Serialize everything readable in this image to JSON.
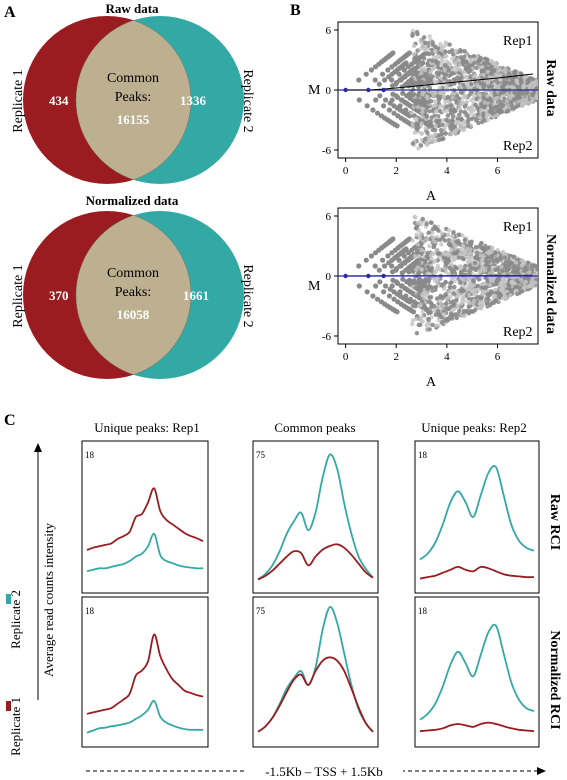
{
  "colors": {
    "red": "#9b1c20",
    "teal": "#33a9a5",
    "overlap": "#bdb090",
    "ma_point": "#8a8a8a",
    "ma_blue": "#2a2aa8",
    "ma_black": "#000000"
  },
  "panel_a": {
    "label": "A",
    "venns": [
      {
        "title": "Raw data",
        "left_label": "Replicate 1",
        "right_label": "Replicate 2",
        "left_only": "434",
        "right_only": "1336",
        "common_label_1": "Common",
        "common_label_2": "Peaks:",
        "common_value": "16155"
      },
      {
        "title": "Normalized data",
        "left_label": "Replicate 1",
        "right_label": "Replicate 2",
        "left_only": "370",
        "right_only": "1661",
        "common_label_1": "Common",
        "common_label_2": "Peaks:",
        "common_value": "16058"
      }
    ]
  },
  "panel_b": {
    "label": "B",
    "ylabel": "M",
    "xlabel": "A",
    "x_ticks": [
      "0",
      "2",
      "4",
      "6"
    ],
    "y_ticks": [
      "6",
      "0",
      "-6"
    ],
    "plots": [
      {
        "side_label": "Raw data",
        "top_label": "Rep1",
        "bottom_label": "Rep2",
        "trend_end_m": 1.6
      },
      {
        "side_label": "Normalized data",
        "top_label": "Rep1",
        "bottom_label": "Rep2",
        "trend_end_m": 0.05
      }
    ]
  },
  "panel_c": {
    "label": "C",
    "ylabel": "Average read counts intensity",
    "xlabel": "-1.5Kb – TSS + 1.5Kb",
    "legend": [
      {
        "name": "Replicate 2",
        "color": "#33a9a5"
      },
      {
        "name": "Replicate 1",
        "color": "#9b1c20"
      }
    ],
    "column_titles": [
      "Unique peaks: Rep1",
      "Common peaks",
      "Unique peaks: Rep2"
    ],
    "row_labels": [
      "Raw RCI",
      "Normalized RCI"
    ]
  },
  "chart_data": [
    {
      "type": "venn",
      "title": "Raw data",
      "sets": [
        "Replicate 1",
        "Replicate 2"
      ],
      "values": {
        "Replicate 1 only": 434,
        "Replicate 2 only": 1336,
        "Common Peaks": 16155
      }
    },
    {
      "type": "venn",
      "title": "Normalized data",
      "sets": [
        "Replicate 1",
        "Replicate 2"
      ],
      "values": {
        "Replicate 1 only": 370,
        "Replicate 2 only": 1661,
        "Common Peaks": 16058
      }
    },
    {
      "type": "scatter",
      "side_label": "Raw data",
      "xlabel": "A",
      "ylabel": "M",
      "xlim": [
        -0.3,
        7.6
      ],
      "ylim": [
        -6.8,
        6.8
      ],
      "x_ticks": [
        0,
        2,
        4,
        6
      ],
      "y_ticks": [
        -6,
        0,
        6
      ],
      "trend": [
        [
          0,
          0
        ],
        [
          1,
          0.0
        ],
        [
          2,
          0.2
        ],
        [
          3,
          0.45
        ],
        [
          4,
          0.7
        ],
        [
          5,
          0.95
        ],
        [
          6,
          1.2
        ],
        [
          7.4,
          1.6
        ]
      ]
    },
    {
      "type": "scatter",
      "side_label": "Normalized data",
      "xlabel": "A",
      "ylabel": "M",
      "xlim": [
        -0.3,
        7.6
      ],
      "ylim": [
        -6.8,
        6.8
      ],
      "x_ticks": [
        0,
        2,
        4,
        6
      ],
      "y_ticks": [
        -6,
        0,
        6
      ],
      "trend": [
        [
          0,
          0
        ],
        [
          2,
          0.02
        ],
        [
          4,
          0.03
        ],
        [
          6,
          0.04
        ],
        [
          7.4,
          0.05
        ]
      ]
    },
    {
      "type": "line",
      "column": "Unique peaks: Rep1",
      "row": "Raw RCI",
      "ymax_tick": 18,
      "ylim": [
        0,
        18
      ],
      "series": [
        {
          "name": "Replicate 1",
          "color": "#9b1c20",
          "values": [
            4.5,
            4.8,
            5.0,
            5.2,
            5.4,
            6.0,
            6.4,
            7.0,
            9.0,
            9.4,
            11.0,
            12.9,
            9.8,
            8.6,
            8.0,
            7.4,
            6.8,
            6.4,
            6.1,
            5.7
          ]
        },
        {
          "name": "Replicate 2",
          "color": "#33a9a5",
          "values": [
            1.6,
            1.8,
            2.0,
            2.0,
            2.2,
            2.4,
            2.6,
            3.0,
            3.6,
            4.0,
            5.0,
            6.7,
            3.8,
            3.0,
            2.7,
            2.4,
            2.2,
            2.1,
            2.0,
            2.0
          ]
        }
      ]
    },
    {
      "type": "line",
      "column": "Common peaks",
      "row": "Raw RCI",
      "ymax_tick": 75,
      "ylim": [
        0,
        75
      ],
      "series": [
        {
          "name": "Replicate 2",
          "color": "#33a9a5",
          "values": [
            2,
            5,
            10,
            18,
            28,
            35,
            40,
            30,
            40,
            60,
            73,
            65,
            45,
            28,
            15,
            8,
            3
          ]
        },
        {
          "name": "Replicate 1",
          "color": "#9b1c20",
          "values": [
            2,
            4,
            7,
            11,
            15,
            18,
            17,
            10,
            15,
            19,
            21,
            22,
            20,
            16,
            11,
            6,
            3
          ]
        }
      ]
    },
    {
      "type": "line",
      "column": "Unique peaks: Rep2",
      "row": "Raw RCI",
      "ymax_tick": 18,
      "ylim": [
        0,
        18
      ],
      "series": [
        {
          "name": "Replicate 2",
          "color": "#33a9a5",
          "values": [
            3.2,
            4.0,
            5.5,
            8.0,
            11.0,
            12.5,
            11.0,
            9.0,
            12.0,
            15.0,
            15.8,
            12.0,
            8.0,
            5.8,
            4.8,
            4.4
          ]
        },
        {
          "name": "Replicate 1",
          "color": "#9b1c20",
          "values": [
            0.6,
            0.8,
            1.0,
            1.4,
            1.8,
            2.2,
            1.8,
            1.6,
            2.2,
            2.0,
            1.6,
            1.2,
            1.0,
            0.9,
            0.8,
            0.8
          ]
        }
      ]
    },
    {
      "type": "line",
      "column": "Unique peaks: Rep1",
      "row": "Normalized RCI",
      "ymax_tick": 18,
      "ylim": [
        0,
        18
      ],
      "series": [
        {
          "name": "Replicate 1",
          "color": "#9b1c20",
          "values": [
            3.2,
            3.4,
            3.6,
            3.8,
            4.0,
            4.6,
            5.2,
            6.0,
            8.5,
            9.2,
            10.5,
            14.2,
            11.2,
            9.4,
            8.0,
            7.2,
            6.4,
            6.1,
            5.8,
            5.6
          ]
        },
        {
          "name": "Replicate 2",
          "color": "#33a9a5",
          "values": [
            0.6,
            0.9,
            1.2,
            1.3,
            1.5,
            1.6,
            1.8,
            2.0,
            2.5,
            3.0,
            3.8,
            5.0,
            2.8,
            2.0,
            1.6,
            1.3,
            1.1,
            1.0,
            1.0,
            1.0
          ]
        }
      ]
    },
    {
      "type": "line",
      "column": "Common peaks",
      "row": "Normalized RCI",
      "ymax_tick": 75,
      "ylim": [
        0,
        75
      ],
      "series": [
        {
          "name": "Replicate 2",
          "color": "#33a9a5",
          "values": [
            3,
            6,
            11,
            19,
            28,
            34,
            38,
            30,
            40,
            62,
            75,
            66,
            48,
            30,
            16,
            8,
            3
          ]
        },
        {
          "name": "Replicate 1",
          "color": "#9b1c20",
          "values": [
            3,
            6,
            11,
            18,
            26,
            33,
            36,
            30,
            38,
            44,
            46,
            44,
            38,
            28,
            17,
            8,
            3
          ]
        }
      ]
    },
    {
      "type": "line",
      "column": "Unique peaks: Rep2",
      "row": "Normalized RCI",
      "ymax_tick": 18,
      "ylim": [
        0,
        18
      ],
      "series": [
        {
          "name": "Replicate 2",
          "color": "#33a9a5",
          "values": [
            2.4,
            3.2,
            4.6,
            7.0,
            10.0,
            11.8,
            10.2,
            8.4,
            11.4,
            14.5,
            15.4,
            11.6,
            7.6,
            5.2,
            4.0,
            3.6
          ]
        },
        {
          "name": "Replicate 1",
          "color": "#9b1c20",
          "values": [
            0.8,
            0.9,
            1.0,
            1.2,
            1.6,
            1.8,
            1.6,
            1.4,
            1.8,
            2.0,
            1.8,
            1.5,
            1.2,
            1.0,
            0.9,
            0.8
          ]
        }
      ]
    }
  ]
}
